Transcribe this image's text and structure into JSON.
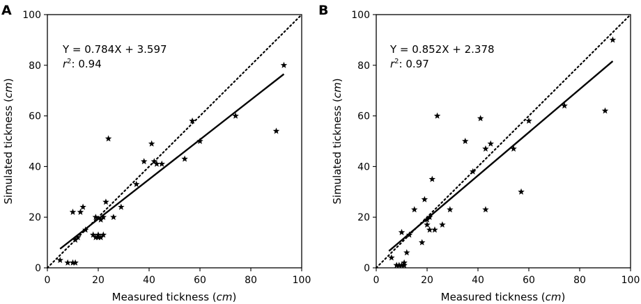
{
  "chart_data": [
    {
      "type": "scatter",
      "panel_label": "A",
      "equation": "Y = 0.784X + 3.597",
      "r2_prefix": "r",
      "r2_sup": "2",
      "r2_value": ": 0.94",
      "xlabel_text": "Measured tickness (",
      "xlabel_unit": "cm",
      "xlabel_close": ")",
      "ylabel_text": "Simulated tickness (",
      "ylabel_unit": "cm",
      "ylabel_close": ")",
      "xlim": [
        0,
        100
      ],
      "ylim": [
        0,
        100
      ],
      "xticks": [
        "0",
        "20",
        "40",
        "60",
        "80",
        "100"
      ],
      "yticks": [
        "0",
        "20",
        "40",
        "60",
        "80",
        "100"
      ],
      "fit": {
        "slope": 0.784,
        "intercept": 3.597,
        "x_range": [
          5,
          93
        ]
      },
      "identity_line": true,
      "points": [
        [
          5,
          3
        ],
        [
          8,
          2
        ],
        [
          10,
          2
        ],
        [
          11,
          2
        ],
        [
          10,
          22
        ],
        [
          11,
          11
        ],
        [
          12,
          12
        ],
        [
          13,
          22
        ],
        [
          14,
          24
        ],
        [
          15,
          15
        ],
        [
          18,
          13
        ],
        [
          19,
          12
        ],
        [
          19,
          20
        ],
        [
          20,
          12
        ],
        [
          20,
          13
        ],
        [
          21,
          12
        ],
        [
          21,
          19
        ],
        [
          22,
          13
        ],
        [
          22,
          20
        ],
        [
          23,
          26
        ],
        [
          24,
          51
        ],
        [
          26,
          20
        ],
        [
          29,
          24
        ],
        [
          35,
          33
        ],
        [
          38,
          42
        ],
        [
          41,
          49
        ],
        [
          42,
          42
        ],
        [
          43,
          41
        ],
        [
          45,
          41
        ],
        [
          54,
          43
        ],
        [
          57,
          58
        ],
        [
          60,
          50
        ],
        [
          74,
          60
        ],
        [
          90,
          54
        ],
        [
          93,
          80
        ]
      ]
    },
    {
      "type": "scatter",
      "panel_label": "B",
      "equation": "Y = 0.852X + 2.378",
      "r2_prefix": "r",
      "r2_sup": "2",
      "r2_value": ": 0.97",
      "xlabel_text": "Measured tickness (",
      "xlabel_unit": "cm",
      "xlabel_close": ")",
      "ylabel_text": "Simulated tickness (",
      "ylabel_unit": "cm",
      "ylabel_close": ")",
      "xlim": [
        0,
        100
      ],
      "ylim": [
        0,
        100
      ],
      "xticks": [
        "0",
        "20",
        "40",
        "60",
        "80",
        "100"
      ],
      "yticks": [
        "0",
        "20",
        "40",
        "60",
        "80",
        "100"
      ],
      "fit": {
        "slope": 0.852,
        "intercept": 2.378,
        "x_range": [
          5,
          93
        ]
      },
      "identity_line": true,
      "points": [
        [
          6,
          4
        ],
        [
          8,
          1
        ],
        [
          9,
          1
        ],
        [
          10,
          1
        ],
        [
          10,
          14
        ],
        [
          11,
          2
        ],
        [
          11,
          1
        ],
        [
          12,
          6
        ],
        [
          13,
          13
        ],
        [
          15,
          23
        ],
        [
          18,
          10
        ],
        [
          19,
          27
        ],
        [
          20,
          17
        ],
        [
          20,
          19
        ],
        [
          21,
          20
        ],
        [
          21,
          15
        ],
        [
          22,
          35
        ],
        [
          23,
          15
        ],
        [
          24,
          60
        ],
        [
          26,
          17
        ],
        [
          29,
          23
        ],
        [
          35,
          50
        ],
        [
          38,
          38
        ],
        [
          41,
          59
        ],
        [
          43,
          23
        ],
        [
          43,
          47
        ],
        [
          45,
          49
        ],
        [
          54,
          47
        ],
        [
          57,
          30
        ],
        [
          60,
          58
        ],
        [
          74,
          64
        ],
        [
          90,
          62
        ],
        [
          93,
          90
        ]
      ]
    }
  ]
}
